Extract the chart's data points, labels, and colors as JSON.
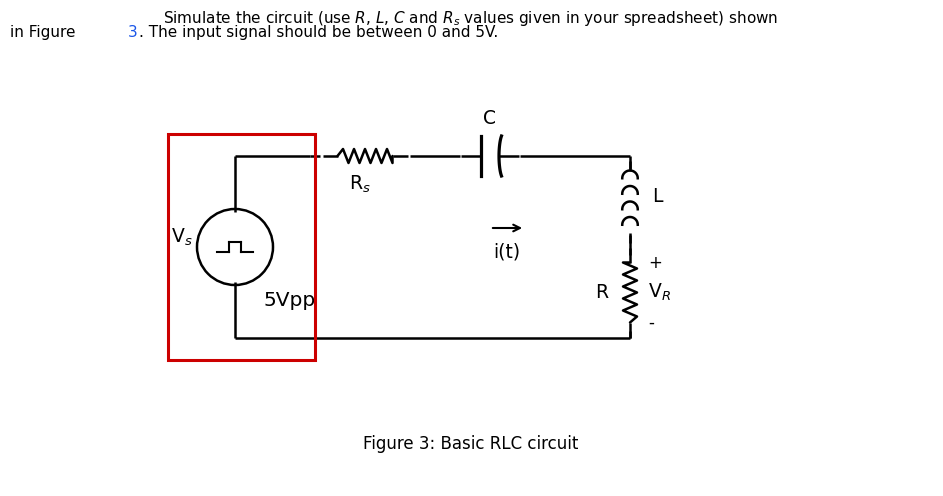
{
  "background_color": "#ffffff",
  "red_color": "#cc0000",
  "fig_width": 9.43,
  "fig_height": 4.96,
  "header_line1": "Simulate the circuit (use $R$, $L$, $C$ and $R_s$ values given in your spreadsheet) shown",
  "header_line2": "in Figure 3. The input signal should be between 0 and 5V.",
  "header_blue_word": "3",
  "caption": "Figure 3: Basic RLC circuit",
  "vs_label": "V$_s$",
  "rs_label": "R$_s$",
  "c_label": "C",
  "l_label": "L",
  "r_label": "R",
  "vr_label": "V$_R$",
  "vpp_label": "5Vpp",
  "it_label": "i(t)",
  "plus_label": "+",
  "minus_label": "-"
}
